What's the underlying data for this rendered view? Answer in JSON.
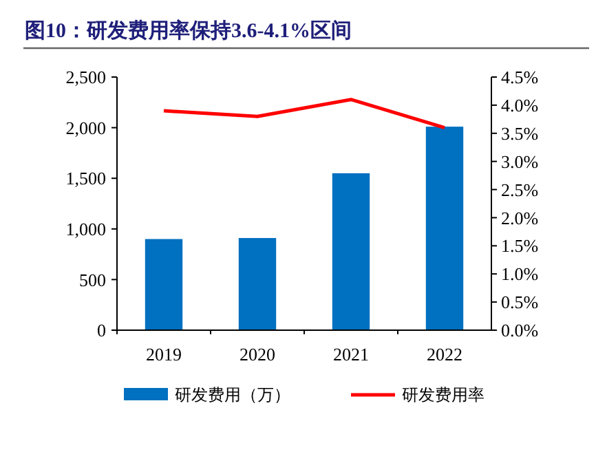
{
  "chart_data": {
    "type": "bar",
    "title": "图10：研发费用率保持3.6-4.1%区间",
    "categories": [
      "2019",
      "2020",
      "2021",
      "2022"
    ],
    "series": [
      {
        "name": "研发费用（万）",
        "color": "#0070c0",
        "values": [
          900,
          910,
          1550,
          2010
        ]
      },
      {
        "name": "研发费用率",
        "type": "line",
        "axis": "y2",
        "color": "#ff0000",
        "values": [
          3.9,
          3.8,
          4.1,
          3.6
        ]
      }
    ],
    "ylim": [
      0,
      2500
    ],
    "yticks": [
      {
        "value": 0,
        "label": "0"
      },
      {
        "value": 500,
        "label": "500"
      },
      {
        "value": 1000,
        "label": "1,000"
      },
      {
        "value": 1500,
        "label": "1,500"
      },
      {
        "value": 2000,
        "label": "2,000"
      },
      {
        "value": 2500,
        "label": "2,500"
      }
    ],
    "y2lim": [
      0,
      4.5
    ],
    "y2ticks": [
      {
        "value": 0,
        "label": "0.0%"
      },
      {
        "value": 0.5,
        "label": "0.5%"
      },
      {
        "value": 1,
        "label": "1.0%"
      },
      {
        "value": 1.5,
        "label": "1.5%"
      },
      {
        "value": 2,
        "label": "2.0%"
      },
      {
        "value": 2.5,
        "label": "2.5%"
      },
      {
        "value": 3,
        "label": "3.0%"
      },
      {
        "value": 3.5,
        "label": "3.5%"
      },
      {
        "value": 4,
        "label": "4.0%"
      },
      {
        "value": 4.5,
        "label": "4.5%"
      }
    ],
    "legend": "bottom",
    "grid": false,
    "marker": "none"
  }
}
